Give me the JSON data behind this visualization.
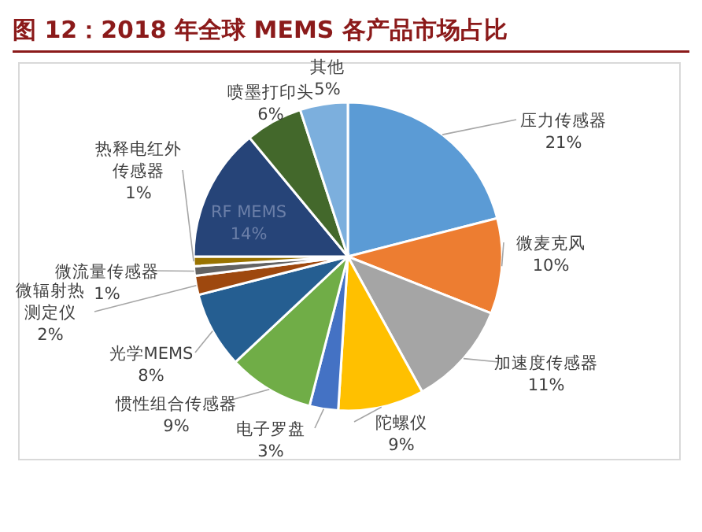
{
  "chart_data": {
    "type": "pie",
    "title": "图 12：2018 年全球 MEMS 各产品市场占比",
    "categories": [
      "压力传感器",
      "微麦克风",
      "加速度传感器",
      "陀螺仪",
      "电子罗盘",
      "惯性组合传感器",
      "光学MEMS",
      "微辐射热测定仪",
      "微流量传感器",
      "热释电红外传感器",
      "RF MEMS",
      "喷墨打印头",
      "其他"
    ],
    "values": [
      21,
      10,
      11,
      9,
      3,
      9,
      8,
      2,
      1,
      1,
      14,
      6,
      5
    ],
    "value_labels": [
      "21%",
      "10%",
      "11%",
      "9%",
      "3%",
      "9%",
      "8%",
      "2%",
      "1%",
      "1%",
      "14%",
      "6%",
      "5%"
    ],
    "colors": [
      "#5b9bd5",
      "#ed7d31",
      "#a5a5a5",
      "#ffc000",
      "#4472c4",
      "#70ad47",
      "#255e91",
      "#9e480e",
      "#636363",
      "#997300",
      "#264478",
      "#43682b",
      "#7cafdd"
    ]
  }
}
